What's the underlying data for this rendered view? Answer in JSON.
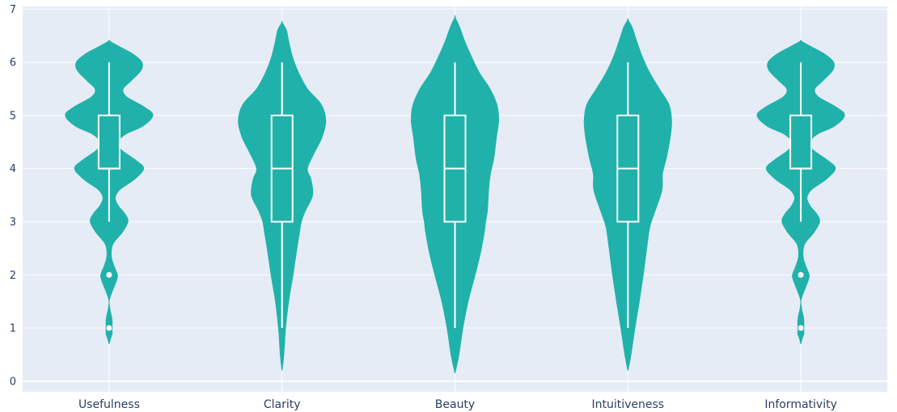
{
  "chart_data": {
    "type": "violin",
    "categories": [
      "Usefulness",
      "Clarity",
      "Beauty",
      "Intuitiveness",
      "Informativity"
    ],
    "ylim": [
      -0.2,
      7.05
    ],
    "yticks": [
      0,
      1,
      2,
      3,
      4,
      5,
      6,
      7
    ],
    "grid": true,
    "colors": {
      "fill": "#20b2aa",
      "background": "#e5ecf6",
      "grid": "#ffffff",
      "box": "#ffffff"
    },
    "violins": [
      {
        "name": "Usefulness",
        "box": {
          "min": 3,
          "q1": 4,
          "median": 4,
          "q3": 5,
          "max": 6
        },
        "outliers": [
          2,
          1
        ],
        "profile": [
          [
            0.7,
            0.0
          ],
          [
            0.8,
            0.03
          ],
          [
            0.9,
            0.07
          ],
          [
            1.0,
            0.06
          ],
          [
            1.1,
            0.07
          ],
          [
            1.2,
            0.06
          ],
          [
            1.35,
            0.02
          ],
          [
            1.5,
            0.0
          ],
          [
            1.6,
            0.03
          ],
          [
            1.75,
            0.1
          ],
          [
            1.9,
            0.17
          ],
          [
            2.0,
            0.19
          ],
          [
            2.15,
            0.12
          ],
          [
            2.3,
            0.06
          ],
          [
            2.45,
            0.05
          ],
          [
            2.6,
            0.1
          ],
          [
            2.8,
            0.3
          ],
          [
            3.0,
            0.43
          ],
          [
            3.15,
            0.36
          ],
          [
            3.3,
            0.21
          ],
          [
            3.45,
            0.14
          ],
          [
            3.6,
            0.24
          ],
          [
            3.8,
            0.58
          ],
          [
            4.0,
            0.79
          ],
          [
            4.15,
            0.62
          ],
          [
            4.35,
            0.28
          ],
          [
            4.5,
            0.2
          ],
          [
            4.65,
            0.38
          ],
          [
            4.8,
            0.77
          ],
          [
            5.0,
            1.0
          ],
          [
            5.15,
            0.82
          ],
          [
            5.35,
            0.4
          ],
          [
            5.5,
            0.32
          ],
          [
            5.65,
            0.5
          ],
          [
            5.85,
            0.73
          ],
          [
            6.0,
            0.75
          ],
          [
            6.15,
            0.55
          ],
          [
            6.3,
            0.22
          ],
          [
            6.4,
            0.0
          ]
        ]
      },
      {
        "name": "Clarity",
        "box": {
          "min": 1,
          "q1": 3,
          "median": 4,
          "q3": 5,
          "max": 6
        },
        "outliers": [],
        "profile": [
          [
            0.2,
            0.0
          ],
          [
            0.5,
            0.04
          ],
          [
            1.0,
            0.08
          ],
          [
            1.5,
            0.15
          ],
          [
            2.0,
            0.25
          ],
          [
            2.5,
            0.34
          ],
          [
            2.8,
            0.4
          ],
          [
            3.0,
            0.44
          ],
          [
            3.2,
            0.53
          ],
          [
            3.5,
            0.7
          ],
          [
            3.8,
            0.66
          ],
          [
            4.0,
            0.58
          ],
          [
            4.3,
            0.74
          ],
          [
            4.6,
            0.92
          ],
          [
            4.9,
            1.0
          ],
          [
            5.2,
            0.9
          ],
          [
            5.5,
            0.58
          ],
          [
            5.8,
            0.38
          ],
          [
            6.1,
            0.24
          ],
          [
            6.4,
            0.15
          ],
          [
            6.6,
            0.1
          ],
          [
            6.75,
            0.0
          ]
        ]
      },
      {
        "name": "Beauty",
        "box": {
          "min": 1,
          "q1": 3,
          "median": 4,
          "q3": 5,
          "max": 6
        },
        "outliers": [],
        "profile": [
          [
            0.15,
            0.0
          ],
          [
            0.5,
            0.09
          ],
          [
            1.0,
            0.18
          ],
          [
            1.5,
            0.3
          ],
          [
            2.0,
            0.46
          ],
          [
            2.4,
            0.58
          ],
          [
            2.8,
            0.67
          ],
          [
            3.0,
            0.7
          ],
          [
            3.2,
            0.74
          ],
          [
            3.6,
            0.77
          ],
          [
            3.9,
            0.81
          ],
          [
            4.2,
            0.89
          ],
          [
            4.6,
            0.95
          ],
          [
            4.9,
            1.0
          ],
          [
            5.2,
            0.96
          ],
          [
            5.5,
            0.8
          ],
          [
            5.8,
            0.56
          ],
          [
            6.1,
            0.38
          ],
          [
            6.4,
            0.22
          ],
          [
            6.65,
            0.11
          ],
          [
            6.85,
            0.0
          ]
        ]
      },
      {
        "name": "Intuitiveness",
        "box": {
          "min": 1,
          "q1": 3,
          "median": 4,
          "q3": 5,
          "max": 6
        },
        "outliers": [],
        "profile": [
          [
            0.2,
            0.0
          ],
          [
            0.5,
            0.07
          ],
          [
            1.0,
            0.16
          ],
          [
            1.5,
            0.26
          ],
          [
            2.0,
            0.35
          ],
          [
            2.5,
            0.43
          ],
          [
            2.9,
            0.5
          ],
          [
            3.2,
            0.62
          ],
          [
            3.6,
            0.78
          ],
          [
            3.9,
            0.79
          ],
          [
            4.2,
            0.88
          ],
          [
            4.6,
            0.97
          ],
          [
            4.9,
            1.0
          ],
          [
            5.2,
            0.94
          ],
          [
            5.5,
            0.72
          ],
          [
            5.8,
            0.5
          ],
          [
            6.1,
            0.33
          ],
          [
            6.4,
            0.2
          ],
          [
            6.65,
            0.1
          ],
          [
            6.8,
            0.0
          ]
        ]
      },
      {
        "name": "Informativity",
        "box": {
          "min": 3,
          "q1": 4,
          "median": 4,
          "q3": 5,
          "max": 6
        },
        "outliers": [
          2,
          1
        ],
        "profile": [
          [
            0.7,
            0.0
          ],
          [
            0.8,
            0.03
          ],
          [
            0.9,
            0.07
          ],
          [
            1.0,
            0.06
          ],
          [
            1.1,
            0.07
          ],
          [
            1.2,
            0.06
          ],
          [
            1.35,
            0.02
          ],
          [
            1.5,
            0.0
          ],
          [
            1.6,
            0.03
          ],
          [
            1.75,
            0.1
          ],
          [
            1.9,
            0.17
          ],
          [
            2.0,
            0.19
          ],
          [
            2.15,
            0.12
          ],
          [
            2.3,
            0.06
          ],
          [
            2.45,
            0.05
          ],
          [
            2.6,
            0.1
          ],
          [
            2.8,
            0.3
          ],
          [
            3.0,
            0.43
          ],
          [
            3.15,
            0.36
          ],
          [
            3.3,
            0.21
          ],
          [
            3.45,
            0.14
          ],
          [
            3.6,
            0.24
          ],
          [
            3.8,
            0.58
          ],
          [
            4.0,
            0.79
          ],
          [
            4.15,
            0.62
          ],
          [
            4.35,
            0.28
          ],
          [
            4.5,
            0.2
          ],
          [
            4.65,
            0.38
          ],
          [
            4.8,
            0.77
          ],
          [
            5.0,
            1.0
          ],
          [
            5.15,
            0.82
          ],
          [
            5.35,
            0.4
          ],
          [
            5.5,
            0.32
          ],
          [
            5.65,
            0.5
          ],
          [
            5.85,
            0.73
          ],
          [
            6.0,
            0.75
          ],
          [
            6.15,
            0.55
          ],
          [
            6.3,
            0.22
          ],
          [
            6.4,
            0.0
          ]
        ]
      }
    ]
  }
}
